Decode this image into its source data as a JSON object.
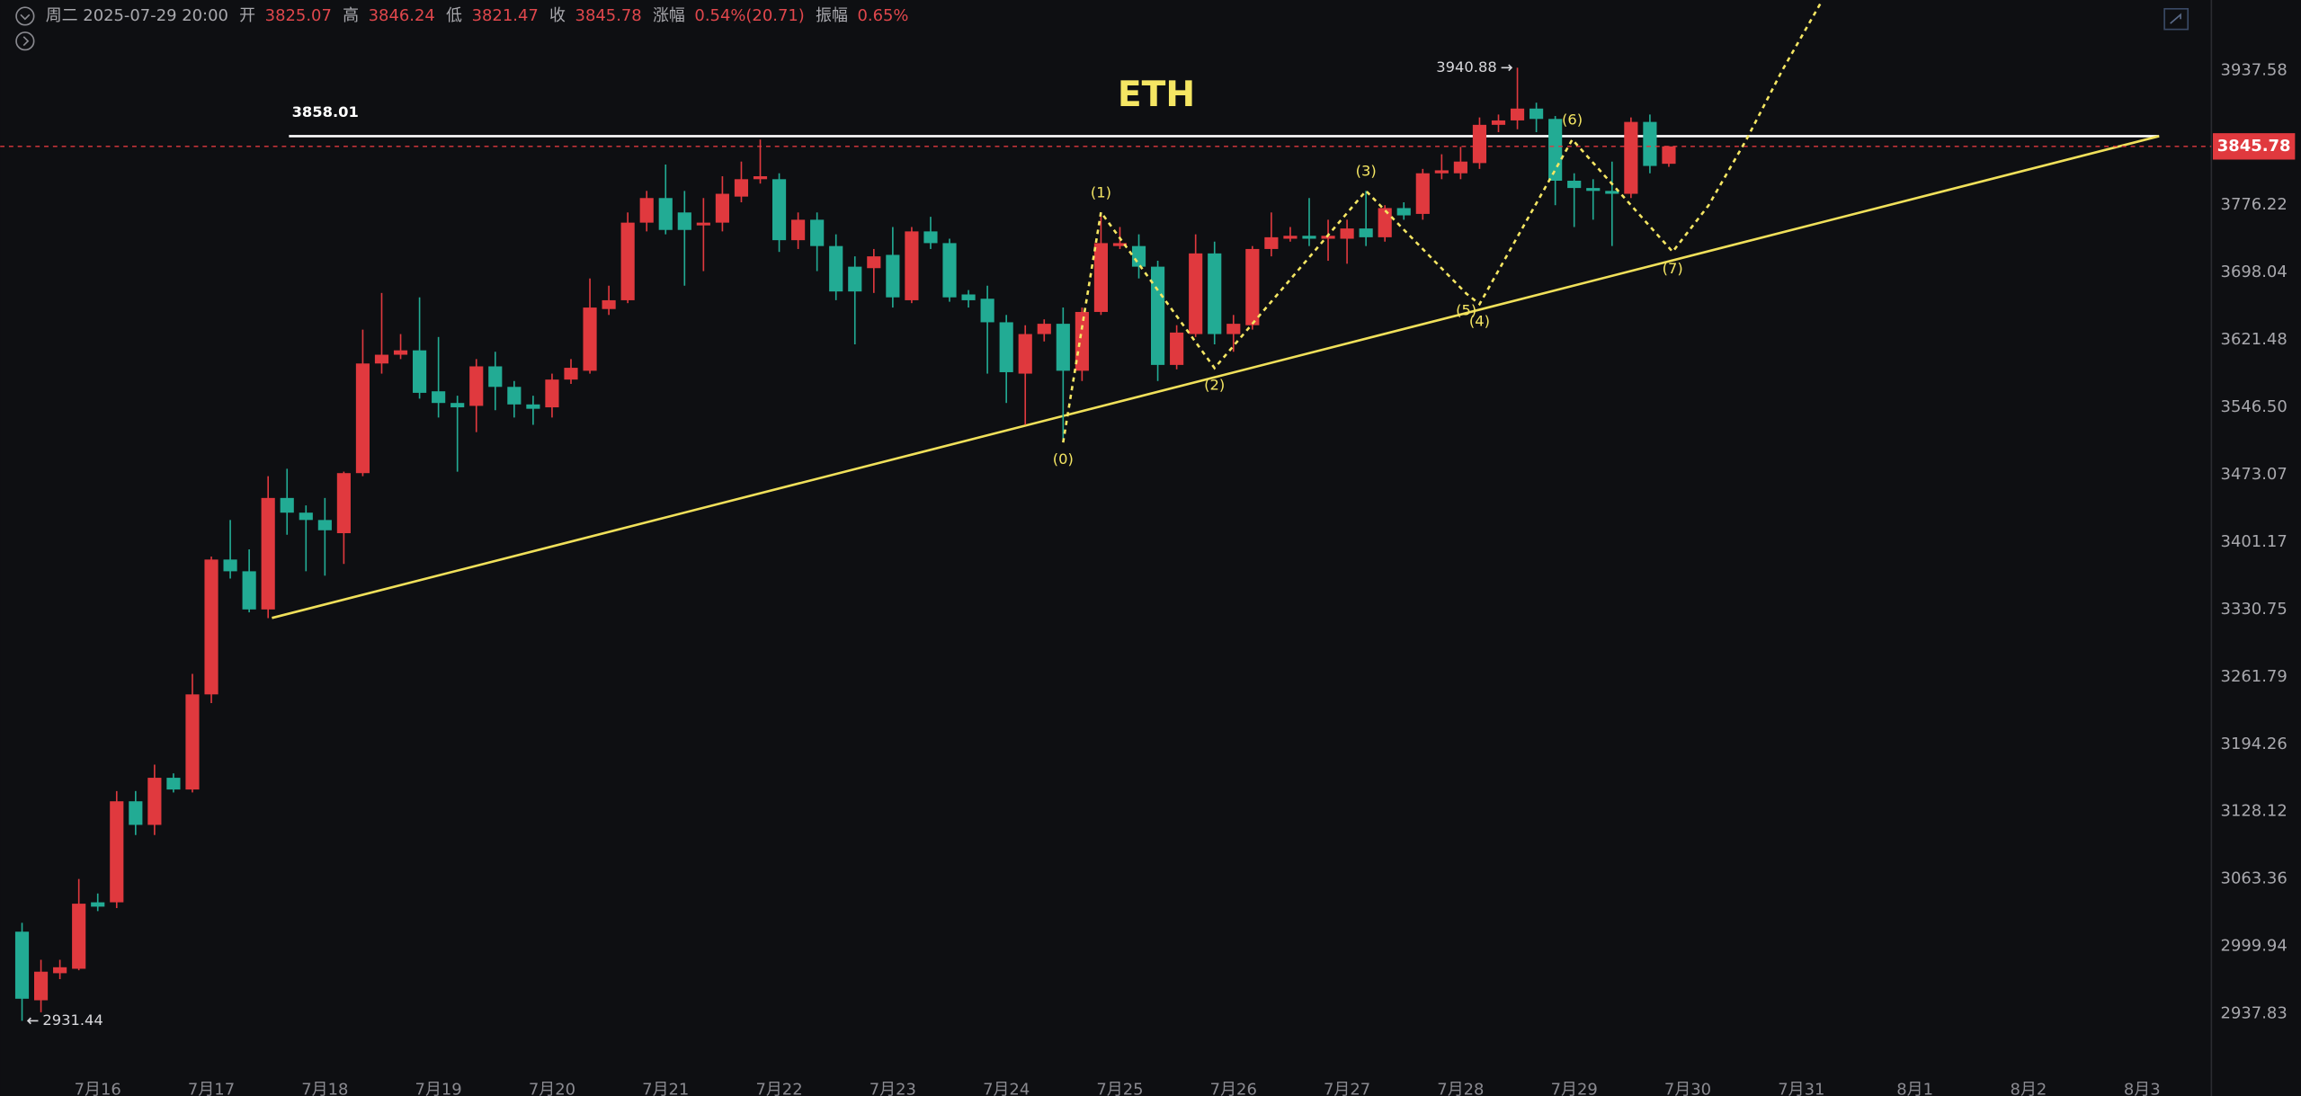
{
  "header": {
    "datetime": "周二 2025-07-29 20:00",
    "open_label": "开",
    "high_label": "高",
    "low_label": "低",
    "close_label": "收",
    "change_label": "涨幅",
    "change": "0.54%(20.71)",
    "amplitude_label": "振幅",
    "amplitude": "0.65%"
  },
  "chart_data": {
    "type": "candlestick",
    "title": "ETH",
    "log_scale": true,
    "grid": false,
    "up_color": "#e0393e",
    "down_color": "#22ab94",
    "ylim": [
      2879.5,
      4024.6
    ],
    "yticks": [
      3937.58,
      3776.22,
      3698.04,
      3621.48,
      {
        "value": 3546.5,
        "label": "3546.50"
      },
      3473.07,
      3401.17,
      3330.75,
      3261.79,
      3194.26,
      3128.12,
      3063.36,
      2999.94,
      2937.83
    ],
    "categories": [
      null,
      null,
      null,
      null,
      "7月16",
      null,
      null,
      null,
      null,
      null,
      "7月17",
      null,
      null,
      null,
      null,
      null,
      "7月18",
      null,
      null,
      null,
      null,
      null,
      "7月19",
      null,
      null,
      null,
      null,
      null,
      "7月20",
      null,
      null,
      null,
      null,
      null,
      "7月21",
      null,
      null,
      null,
      null,
      null,
      "7月22",
      null,
      null,
      null,
      null,
      null,
      "7月23",
      null,
      null,
      null,
      null,
      null,
      "7月24",
      null,
      null,
      null,
      null,
      null,
      "7月25",
      null,
      null,
      null,
      null,
      null,
      "7月26",
      null,
      null,
      null,
      null,
      null,
      "7月27",
      null,
      null,
      null,
      null,
      null,
      "7月28",
      null,
      null,
      null,
      null,
      null,
      "7月29",
      null,
      null,
      null,
      null,
      null,
      "7月30",
      null,
      null,
      null,
      null,
      null,
      "7月31",
      null,
      null,
      null,
      null,
      null,
      "8月1",
      null,
      null,
      null,
      null,
      null,
      "8月2",
      null,
      null,
      null,
      null,
      null,
      "8月3",
      null,
      null,
      null
    ],
    "open": [
      3013.7,
      2950.2,
      2975.1,
      2979.2,
      3041.3,
      3041.3,
      3138.2,
      3115.3,
      3161.2,
      3149.7,
      3244.1,
      3382.8,
      3370.5,
      3330.8,
      3448.1,
      3432.4,
      3424.6,
      3410.6,
      3474.8,
      3595.1,
      3604.9,
      3609.8,
      3564.2,
      3551.3,
      3548.1,
      3591.9,
      3569.1,
      3549.7,
      3546.5,
      3577.2,
      3587.0,
      3656.4,
      3666.4,
      3755.8,
      3784.6,
      3767.7,
      3752.6,
      3755.8,
      3786.3,
      3806.8,
      3806.8,
      3735.4,
      3759.2,
      3728.6,
      3704.8,
      3703.1,
      3718.4,
      3666.4,
      3745.6,
      3732.0,
      3673.0,
      3668.1,
      3641.4,
      3583.8,
      3628.1,
      3639.7,
      3587.0,
      3653.1,
      3728.6,
      3728.6,
      3704.8,
      3593.5,
      3628.1,
      3720.1,
      3628.1,
      3638.1,
      3725.2,
      3737.1,
      3740.5,
      3737.1,
      3737.1,
      3749.0,
      3738.8,
      3772.8,
      3766.0,
      3813.8,
      3813.8,
      3825.9,
      3871.6,
      3876.9,
      3891.2,
      3878.7,
      3805.0,
      3796.4,
      3793.0,
      3789.6,
      3875.1,
      3825.07,
      null,
      null,
      null,
      null,
      null,
      null,
      null,
      null,
      null,
      null,
      null,
      null,
      null,
      null,
      null,
      null,
      null,
      null,
      null,
      null,
      null,
      null,
      null,
      null,
      null,
      null,
      null,
      null
    ],
    "high": [
      3022.0,
      2987.5,
      2987.5,
      3063.4,
      3049.6,
      3148.2,
      3148.2,
      3174.1,
      3165.5,
      3264.8,
      3385.9,
      3424.6,
      3393.5,
      3471.5,
      3479.5,
      3440.2,
      3448.1,
      3476.4,
      3633.1,
      3674.7,
      3628.1,
      3669.7,
      3624.8,
      3559.3,
      3600.0,
      3608.2,
      3575.6,
      3559.3,
      3583.8,
      3600.0,
      3691.3,
      3683.0,
      3767.7,
      3793.0,
      3824.2,
      3793.0,
      3784.6,
      3810.3,
      3827.7,
      3853.9,
      3813.8,
      3767.7,
      3767.7,
      3742.2,
      3716.7,
      3725.2,
      3750.7,
      3750.7,
      3762.6,
      3737.1,
      3678.0,
      3683.0,
      3649.7,
      3638.1,
      3644.7,
      3658.1,
      3658.1,
      3767.7,
      3750.7,
      3742.2,
      3711.6,
      3638.1,
      3742.2,
      3733.7,
      3649.7,
      3728.6,
      3767.7,
      3750.7,
      3784.6,
      3759.2,
      3759.2,
      3793.0,
      3776.2,
      3779.6,
      3819.0,
      3836.4,
      3845.2,
      3880.5,
      3884.0,
      3940.88,
      3898.3,
      3882.2,
      3813.8,
      3806.8,
      3827.7,
      3880.5,
      3884.0,
      3846.24,
      null,
      null,
      null,
      null,
      null,
      null,
      null,
      null,
      null,
      null,
      null,
      null,
      null,
      null,
      null,
      null,
      null,
      null,
      null,
      null,
      null,
      null,
      null,
      null,
      null,
      null,
      null,
      null
    ],
    "low": [
      2931.44,
      2939.2,
      2969.6,
      2977.8,
      3033.0,
      3035.8,
      3105.5,
      3105.5,
      3146.8,
      3146.8,
      3235.3,
      3362.9,
      3327.8,
      3321.8,
      3409.0,
      3370.5,
      3365.9,
      3378.2,
      3471.5,
      3583.8,
      3600.0,
      3556.1,
      3535.3,
      3476.4,
      3519.3,
      3543.3,
      3535.3,
      3527.3,
      3535.3,
      3572.4,
      3583.8,
      3649.7,
      3663.1,
      3745.6,
      3742.2,
      3683.0,
      3699.7,
      3745.6,
      3779.6,
      3801.6,
      3721.8,
      3725.2,
      3699.7,
      3666.4,
      3616.5,
      3674.7,
      3658.1,
      3663.1,
      3725.2,
      3664.7,
      3658.1,
      3583.8,
      3551.3,
      3527.3,
      3619.8,
      3508.2,
      3575.6,
      3649.7,
      3725.2,
      3691.3,
      3575.6,
      3588.6,
      3624.8,
      3616.5,
      3608.2,
      3633.1,
      3716.7,
      3733.7,
      3728.6,
      3711.6,
      3708.2,
      3728.6,
      3733.7,
      3759.2,
      3759.2,
      3806.8,
      3806.8,
      3819.0,
      3862.8,
      3866.3,
      3862.8,
      3776.2,
      3750.7,
      3759.2,
      3728.6,
      3784.6,
      3813.8,
      3821.47,
      null,
      null,
      null,
      null,
      null,
      null,
      null,
      null,
      null,
      null,
      null,
      null,
      null,
      null,
      null,
      null,
      null,
      null,
      null,
      null,
      null,
      null,
      null,
      null,
      null,
      null,
      null,
      null
    ],
    "close": [
      2951.6,
      2976.5,
      2980.6,
      3040.0,
      3037.2,
      3138.2,
      3115.3,
      3161.2,
      3149.7,
      3244.1,
      3382.8,
      3370.5,
      3330.8,
      3448.1,
      3432.4,
      3424.6,
      3413.7,
      3474.8,
      3595.1,
      3604.9,
      3609.8,
      3562.5,
      3551.3,
      3546.5,
      3591.9,
      3569.1,
      3549.7,
      3544.9,
      3577.2,
      3590.3,
      3658.1,
      3666.4,
      3755.8,
      3784.6,
      3747.3,
      3747.3,
      3755.8,
      3789.6,
      3806.8,
      3810.3,
      3735.4,
      3759.2,
      3728.6,
      3676.4,
      3676.4,
      3716.7,
      3669.7,
      3745.6,
      3732.0,
      3669.7,
      3666.4,
      3641.4,
      3585.4,
      3628.1,
      3639.7,
      3587.0,
      3653.1,
      3732.0,
      3732.0,
      3704.8,
      3593.5,
      3629.8,
      3720.1,
      3628.1,
      3639.7,
      3725.2,
      3738.8,
      3740.5,
      3737.1,
      3740.5,
      3749.0,
      3738.8,
      3772.8,
      3764.3,
      3813.8,
      3817.3,
      3827.7,
      3871.6,
      3876.9,
      3891.2,
      3878.7,
      3805.0,
      3796.4,
      3793.0,
      3789.6,
      3875.1,
      3822.5,
      3845.78,
      null,
      null,
      null,
      null,
      null,
      null,
      null,
      null,
      null,
      null,
      null,
      null,
      null,
      null,
      null,
      null,
      null,
      null,
      null,
      null,
      null,
      null,
      null,
      null,
      null,
      null,
      null,
      null
    ],
    "hline": {
      "value": 3858.01,
      "x": [
        14.1,
        112.9
      ],
      "color": "#ffffff"
    },
    "trendline": {
      "x": [
        13.2,
        112.9
      ],
      "y": [
        3322,
        3858.01
      ],
      "color": "#f0e05a"
    },
    "wave": {
      "color": "#f5e663",
      "x": [
        55,
        57,
        63,
        71,
        76.3,
        77,
        81.9,
        87.2,
        89.1,
        91.1,
        93,
        95.1
      ],
      "y": [
        3508,
        3768,
        3590,
        3793,
        3674,
        3662,
        3854,
        3722,
        3776,
        3854,
        3938,
        4024
      ],
      "labels": [
        "(0)",
        "(1)",
        "(2)",
        "(3)",
        "(5)",
        "(4)",
        "(6)",
        "(7)",
        null,
        null,
        null,
        null
      ]
    }
  }
}
